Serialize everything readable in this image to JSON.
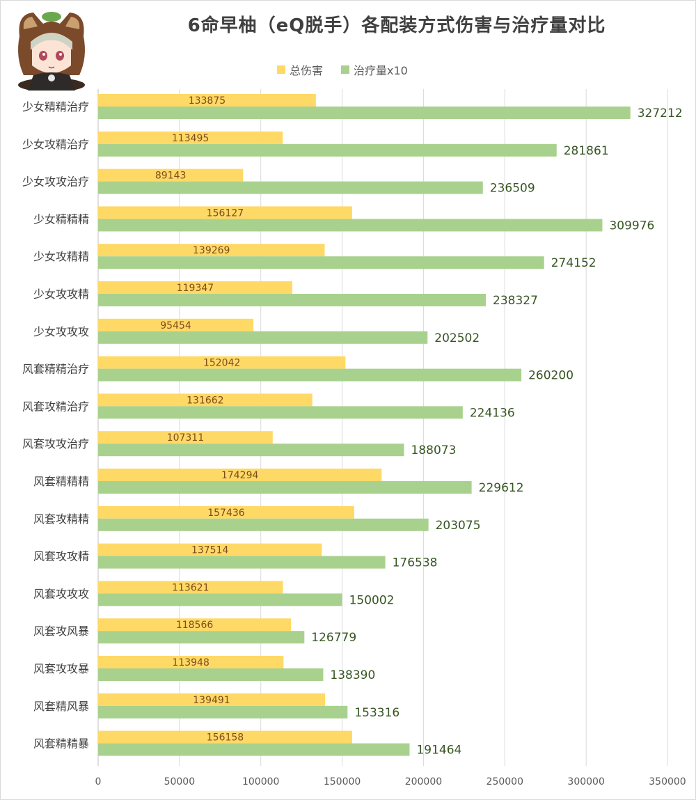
{
  "chart_data": {
    "type": "bar",
    "orientation": "horizontal",
    "title": "6命早柚（eQ脱手）各配装方式伤害与治疗量对比",
    "categories": [
      "少女精精治疗",
      "少女攻精治疗",
      "少女攻攻治疗",
      "少女精精精",
      "少女攻精精",
      "少女攻攻精",
      "少女攻攻攻",
      "风套精精治疗",
      "风套攻精治疗",
      "风套攻攻治疗",
      "风套精精精",
      "风套攻精精",
      "风套攻攻精",
      "风套攻攻攻",
      "风套攻风暴",
      "风套攻攻暴",
      "风套精风暴",
      "风套精精暴"
    ],
    "series": [
      {
        "name": "总伤害",
        "color": "#FFD966",
        "values": [
          133875,
          113495,
          89143,
          156127,
          139269,
          119347,
          95454,
          152042,
          131662,
          107311,
          174294,
          157436,
          137514,
          113621,
          118566,
          113948,
          139491,
          156158
        ]
      },
      {
        "name": "治疗量x10",
        "color": "#A9D18E",
        "values": [
          327212,
          281861,
          236509,
          309976,
          274152,
          238327,
          202502,
          260200,
          224136,
          188073,
          229612,
          203075,
          176538,
          150002,
          126779,
          138390,
          153316,
          191464
        ]
      }
    ],
    "xlim": [
      0,
      350000
    ],
    "xticks": [
      0,
      50000,
      100000,
      150000,
      200000,
      250000,
      300000,
      350000
    ],
    "grid": true,
    "legend_position": "top"
  }
}
